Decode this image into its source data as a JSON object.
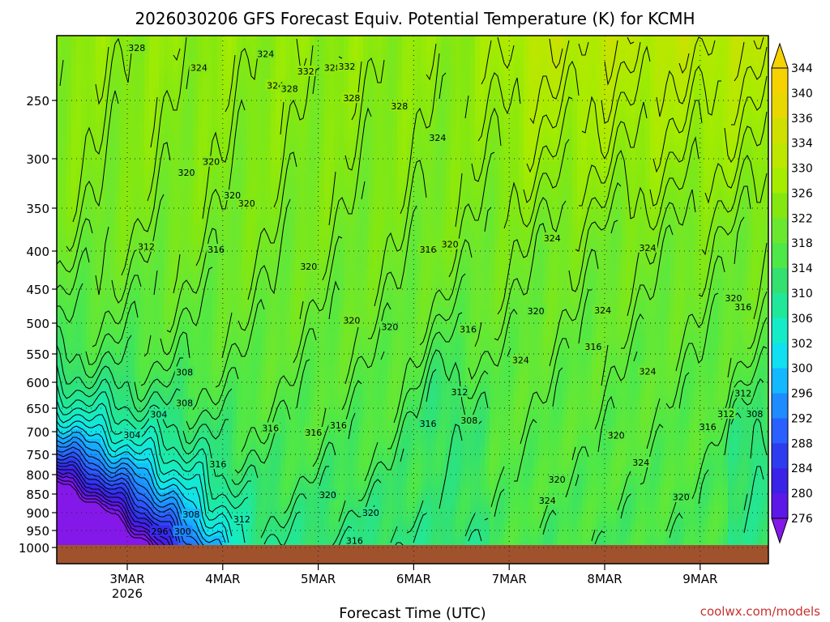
{
  "chart_data": {
    "type": "heatmap",
    "title": "2026030206 GFS Forecast Equiv. Potential Temperature (K) for KCMH",
    "xlabel": "Forecast Time (UTC)",
    "ylabel": "",
    "y_ticks": [
      250,
      300,
      350,
      400,
      450,
      500,
      550,
      600,
      650,
      700,
      750,
      800,
      850,
      900,
      950,
      1000
    ],
    "x_ticks": [
      {
        "label": "3MAR",
        "sub": "2026"
      },
      {
        "label": "4MAR",
        "sub": ""
      },
      {
        "label": "5MAR",
        "sub": ""
      },
      {
        "label": "6MAR",
        "sub": ""
      },
      {
        "label": "7MAR",
        "sub": ""
      },
      {
        "label": "8MAR",
        "sub": ""
      },
      {
        "label": "9MAR",
        "sub": ""
      }
    ],
    "colorbar": {
      "ticks": [
        344,
        340,
        336,
        334,
        330,
        326,
        322,
        318,
        314,
        310,
        306,
        302,
        300,
        296,
        292,
        288,
        284,
        280,
        276
      ],
      "colors": [
        "#f5d200",
        "#e8d800",
        "#cfe000",
        "#bde600",
        "#a6ec00",
        "#84e810",
        "#6ae830",
        "#4ee848",
        "#33e070",
        "#20e89a",
        "#14ecc8",
        "#10e0f0",
        "#14b8ff",
        "#1e8cff",
        "#2a60ff",
        "#2e3cf0",
        "#3a22e8",
        "#5c18e6",
        "#8418e8"
      ]
    },
    "grid": true,
    "credit": "coolwx.com/models",
    "contour_labels": [
      {
        "text": "328",
        "t": 0.1,
        "p": 205
      },
      {
        "text": "324",
        "t": 0.75,
        "p": 222
      },
      {
        "text": "324",
        "t": 1.45,
        "p": 210
      },
      {
        "text": "332",
        "t": 1.87,
        "p": 225
      },
      {
        "text": "328",
        "t": 2.15,
        "p": 222
      },
      {
        "text": "332",
        "t": 2.3,
        "p": 221
      },
      {
        "text": "324",
        "t": 1.55,
        "p": 237
      },
      {
        "text": "328",
        "t": 1.7,
        "p": 240
      },
      {
        "text": "328",
        "t": 2.35,
        "p": 248
      },
      {
        "text": "328",
        "t": 2.85,
        "p": 255
      },
      {
        "text": "324",
        "t": 3.25,
        "p": 282
      },
      {
        "text": "320",
        "t": 0.62,
        "p": 314
      },
      {
        "text": "320",
        "t": 0.88,
        "p": 303
      },
      {
        "text": "320",
        "t": 1.25,
        "p": 345
      },
      {
        "text": "320",
        "t": 1.1,
        "p": 337
      },
      {
        "text": "312",
        "t": 0.2,
        "p": 395
      },
      {
        "text": "316",
        "t": 0.93,
        "p": 398
      },
      {
        "text": "320",
        "t": 1.9,
        "p": 420
      },
      {
        "text": "316",
        "t": 3.15,
        "p": 398
      },
      {
        "text": "320",
        "t": 3.38,
        "p": 392
      },
      {
        "text": "324",
        "t": 4.45,
        "p": 385
      },
      {
        "text": "324",
        "t": 5.45,
        "p": 396
      },
      {
        "text": "320",
        "t": 6.35,
        "p": 463
      },
      {
        "text": "316",
        "t": 6.45,
        "p": 476
      },
      {
        "text": "320",
        "t": 2.35,
        "p": 496
      },
      {
        "text": "320",
        "t": 2.75,
        "p": 506
      },
      {
        "text": "316",
        "t": 3.57,
        "p": 510
      },
      {
        "text": "320",
        "t": 4.28,
        "p": 482
      },
      {
        "text": "324",
        "t": 4.98,
        "p": 481
      },
      {
        "text": "316",
        "t": 4.88,
        "p": 538
      },
      {
        "text": "324",
        "t": 4.12,
        "p": 561
      },
      {
        "text": "324",
        "t": 5.45,
        "p": 581
      },
      {
        "text": "308",
        "t": 0.6,
        "p": 582
      },
      {
        "text": "308",
        "t": 0.6,
        "p": 640
      },
      {
        "text": "304",
        "t": 0.33,
        "p": 663
      },
      {
        "text": "304",
        "t": 0.05,
        "p": 707
      },
      {
        "text": "312",
        "t": 3.48,
        "p": 619
      },
      {
        "text": "308",
        "t": 3.58,
        "p": 676
      },
      {
        "text": "316",
        "t": 2.21,
        "p": 686
      },
      {
        "text": "316",
        "t": 3.15,
        "p": 683
      },
      {
        "text": "316",
        "t": 1.5,
        "p": 692
      },
      {
        "text": "316",
        "t": 1.95,
        "p": 702
      },
      {
        "text": "312",
        "t": 6.45,
        "p": 621
      },
      {
        "text": "312",
        "t": 6.27,
        "p": 662
      },
      {
        "text": "308",
        "t": 6.57,
        "p": 662
      },
      {
        "text": "316",
        "t": 6.08,
        "p": 690
      },
      {
        "text": "320",
        "t": 5.12,
        "p": 708
      },
      {
        "text": "324",
        "t": 5.38,
        "p": 770
      },
      {
        "text": "316",
        "t": 0.95,
        "p": 774
      },
      {
        "text": "320",
        "t": 2.1,
        "p": 852
      },
      {
        "text": "320",
        "t": 2.55,
        "p": 900
      },
      {
        "text": "320",
        "t": 4.5,
        "p": 813
      },
      {
        "text": "324",
        "t": 4.4,
        "p": 867
      },
      {
        "text": "320",
        "t": 5.8,
        "p": 858
      },
      {
        "text": "308",
        "t": 0.67,
        "p": 905
      },
      {
        "text": "312",
        "t": 1.2,
        "p": 918
      },
      {
        "text": "296",
        "t": 0.34,
        "p": 952
      },
      {
        "text": "300",
        "t": 0.58,
        "p": 952
      },
      {
        "text": "316",
        "t": 2.38,
        "p": 980
      }
    ]
  }
}
